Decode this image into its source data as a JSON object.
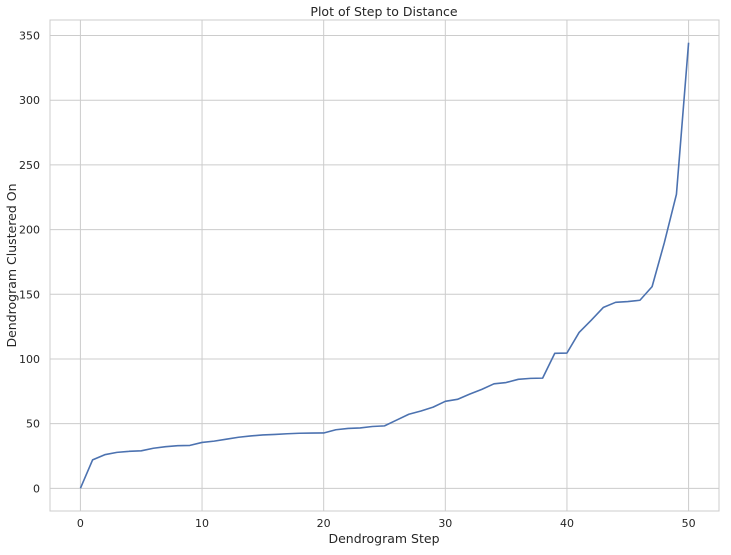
{
  "chart_data": {
    "type": "line",
    "title": "Plot of Step to Distance",
    "xlabel": "Dendrogram Step",
    "ylabel": "Dendrogram Clustered On",
    "xlim": [
      -2.5,
      52.5
    ],
    "ylim": [
      -17.5,
      362
    ],
    "xticks": [
      0,
      10,
      20,
      30,
      40,
      50
    ],
    "yticks": [
      0,
      50,
      100,
      150,
      200,
      250,
      300,
      350
    ],
    "grid": true,
    "line_color": "#4c72b0",
    "x": [
      0,
      1,
      2,
      3,
      4,
      5,
      6,
      7,
      8,
      9,
      10,
      11,
      12,
      13,
      14,
      15,
      16,
      17,
      18,
      19,
      20,
      21,
      22,
      23,
      24,
      25,
      26,
      27,
      28,
      29,
      30,
      31,
      32,
      33,
      34,
      35,
      36,
      37,
      38,
      39,
      40,
      41,
      42,
      43,
      44,
      45,
      46,
      47,
      48,
      49,
      50
    ],
    "values": [
      0,
      22,
      26,
      27.8,
      28.6,
      29,
      31,
      32.2,
      33,
      33.2,
      35.5,
      36.5,
      38,
      39.5,
      40.5,
      41.3,
      41.7,
      42.2,
      42.6,
      42.7,
      42.8,
      45.3,
      46.3,
      46.7,
      47.8,
      48.3,
      52.8,
      57.3,
      59.8,
      62.8,
      67.3,
      68.8,
      72.8,
      76.5,
      80.8,
      81.8,
      84.3,
      85,
      85.2,
      104.4,
      104.6,
      120.5,
      130,
      139.9,
      143.8,
      144.4,
      145.4,
      155.9,
      189.7,
      227.3,
      344.5
    ]
  }
}
